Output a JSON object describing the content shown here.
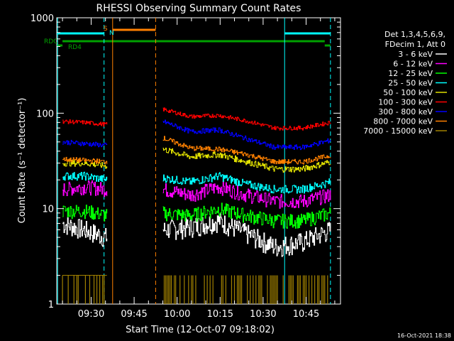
{
  "chart_data": {
    "type": "line",
    "title": "RHESSI Observing Summary Count Rates",
    "xlabel": "Start Time (12-Oct-07 09:18:02)",
    "ylabel": "Count Rate (s⁻¹ detector⁻¹)",
    "yscale": "log",
    "ylim": [
      1,
      1000
    ],
    "xlim_minutes": [
      0,
      99
    ],
    "x_tick_labels": [
      "09:30",
      "09:45",
      "10:00",
      "10:15",
      "10:30",
      "10:45"
    ],
    "x_tick_minutes": [
      12,
      27,
      42,
      57,
      72,
      87
    ],
    "y_tick_labels": [
      "1",
      "10",
      "100",
      "1000"
    ],
    "y_tick_values": [
      1,
      10,
      100,
      1000
    ],
    "legend": {
      "placement": "right",
      "header": [
        "Det 1,3,4,5,6,9,",
        "FDecim 1, Att 0"
      ]
    },
    "series": [
      {
        "name": "3 - 6 keV",
        "color": "#ffffff",
        "seg1": [
          7.0,
          6.0,
          5.0
        ],
        "seg2": [
          6.0,
          6.5,
          7.5,
          5.5,
          4.0,
          4.5,
          6.0
        ]
      },
      {
        "name": "6 - 12 keV",
        "color": "#ff00ff",
        "seg1": [
          16,
          17,
          16
        ],
        "seg2": [
          16,
          14,
          17,
          14,
          12,
          12,
          14
        ]
      },
      {
        "name": "12 - 25 keV",
        "color": "#00ff00",
        "seg1": [
          9.5,
          9.5,
          8.5
        ],
        "seg2": [
          9,
          8.5,
          10,
          8.5,
          7.5,
          7.5,
          9
        ]
      },
      {
        "name": "25 - 50 keV",
        "color": "#00ffff",
        "seg1": [
          22,
          22,
          20
        ],
        "seg2": [
          21,
          19,
          22,
          18,
          16,
          16,
          19
        ]
      },
      {
        "name": "50 - 100 keV",
        "color": "#e0e000",
        "seg1": [
          30,
          30,
          28
        ],
        "seg2": [
          42,
          35,
          37,
          31,
          26,
          26,
          31
        ]
      },
      {
        "name": "100 - 300 keV",
        "color": "#ff0000",
        "seg1": [
          82,
          80,
          76
        ],
        "seg2": [
          110,
          92,
          95,
          83,
          70,
          70,
          80
        ]
      },
      {
        "name": "300 - 800 keV",
        "color": "#0000ff",
        "seg1": [
          50,
          48,
          46
        ],
        "seg2": [
          82,
          64,
          67,
          54,
          44,
          44,
          52
        ]
      },
      {
        "name": "800 - 7000 keV",
        "color": "#ff8000",
        "seg1": [
          33,
          32,
          31
        ],
        "seg2": [
          55,
          43,
          42,
          37,
          31,
          31,
          36
        ]
      },
      {
        "name": "7000 - 15000 keV",
        "color": "#a08000",
        "seg1": [
          1.5,
          1.5,
          1.5
        ],
        "seg2": [
          1.5,
          1.5,
          1.5,
          1.5,
          1.5,
          1.5,
          1.5
        ]
      }
    ],
    "segments_minutes": {
      "seg1": [
        2,
        17.5
      ],
      "seg2": [
        37,
        95.5
      ]
    },
    "annotations": [
      {
        "label": "RDC",
        "color": "#00a000"
      },
      {
        "label": "RD4",
        "color": "#00a000"
      },
      {
        "label": "S",
        "color": "#ff8000"
      },
      {
        "label": "N",
        "color": "#00ffff"
      }
    ],
    "footer_timestamp": "16-Oct-2021 18:38"
  }
}
